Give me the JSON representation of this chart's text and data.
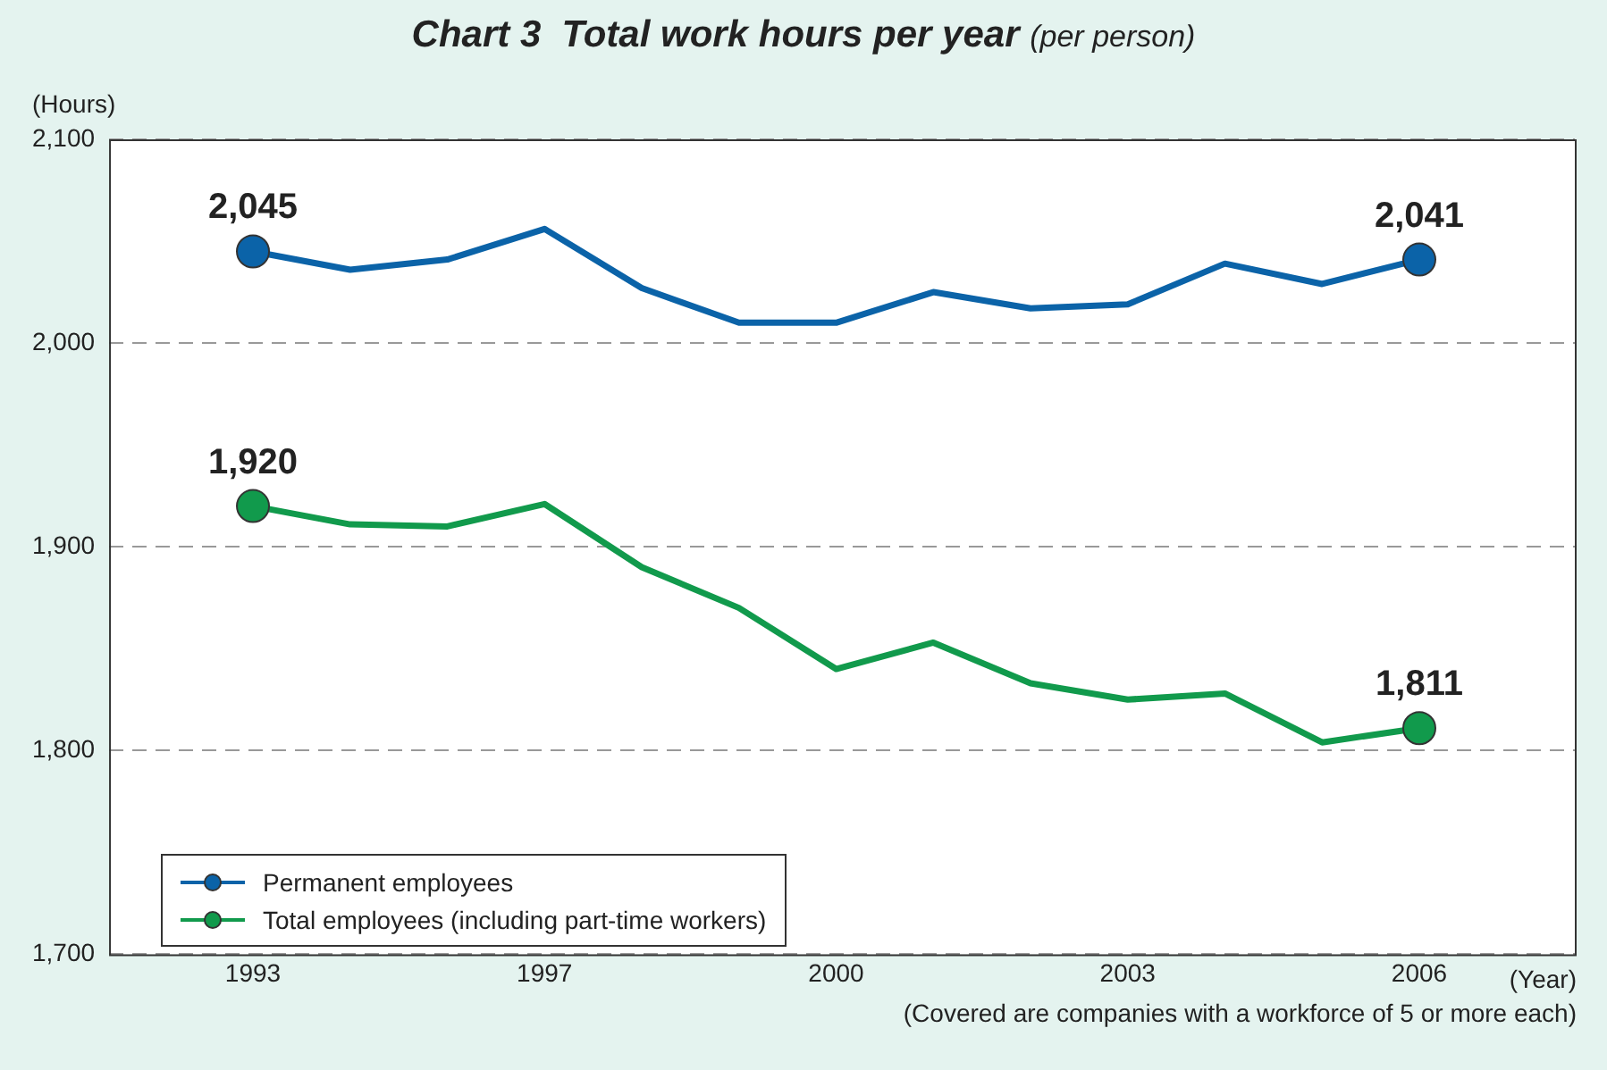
{
  "chart_data": {
    "type": "line",
    "title": "Chart 3  Total work hours per year",
    "subtitle": "(per person)",
    "xlabel": "(Year)",
    "ylabel": "(Hours)",
    "annotations": [
      "(Covered are companies with a workforce of 5 or more each)"
    ],
    "categories": [
      "1993",
      null,
      null,
      "1997",
      null,
      null,
      "2000",
      null,
      null,
      "2003",
      null,
      null,
      "2006"
    ],
    "series": [
      {
        "name": "Permanent employees",
        "color": "#0b63a8",
        "values": [
          2045,
          2036,
          2041,
          2056,
          2027,
          2010,
          2010,
          2025,
          2017,
          2019,
          2039,
          2029,
          2041
        ],
        "value_labels": [
          "2,045",
          null,
          null,
          null,
          null,
          null,
          null,
          null,
          null,
          null,
          null,
          null,
          "2,041"
        ]
      },
      {
        "name": "Total employees (including part-time workers)",
        "color": "#119a4c",
        "values": [
          1920,
          1911,
          1910,
          1921,
          1890,
          1870,
          1840,
          1853,
          1833,
          1825,
          1828,
          1804,
          1811
        ],
        "value_labels": [
          "1,920",
          null,
          null,
          null,
          null,
          null,
          null,
          null,
          null,
          null,
          null,
          null,
          "1,811"
        ]
      }
    ],
    "ylim": [
      1700,
      2100
    ],
    "yticks": [
      {
        "value": 1700,
        "label": "1,700"
      },
      {
        "value": 1800,
        "label": "1,800"
      },
      {
        "value": 1900,
        "label": "1,900"
      },
      {
        "value": 2000,
        "label": "2,000"
      },
      {
        "value": 2100,
        "label": "2,100"
      }
    ],
    "grid": "y",
    "legend": "bottom left",
    "line_style": "solid"
  }
}
